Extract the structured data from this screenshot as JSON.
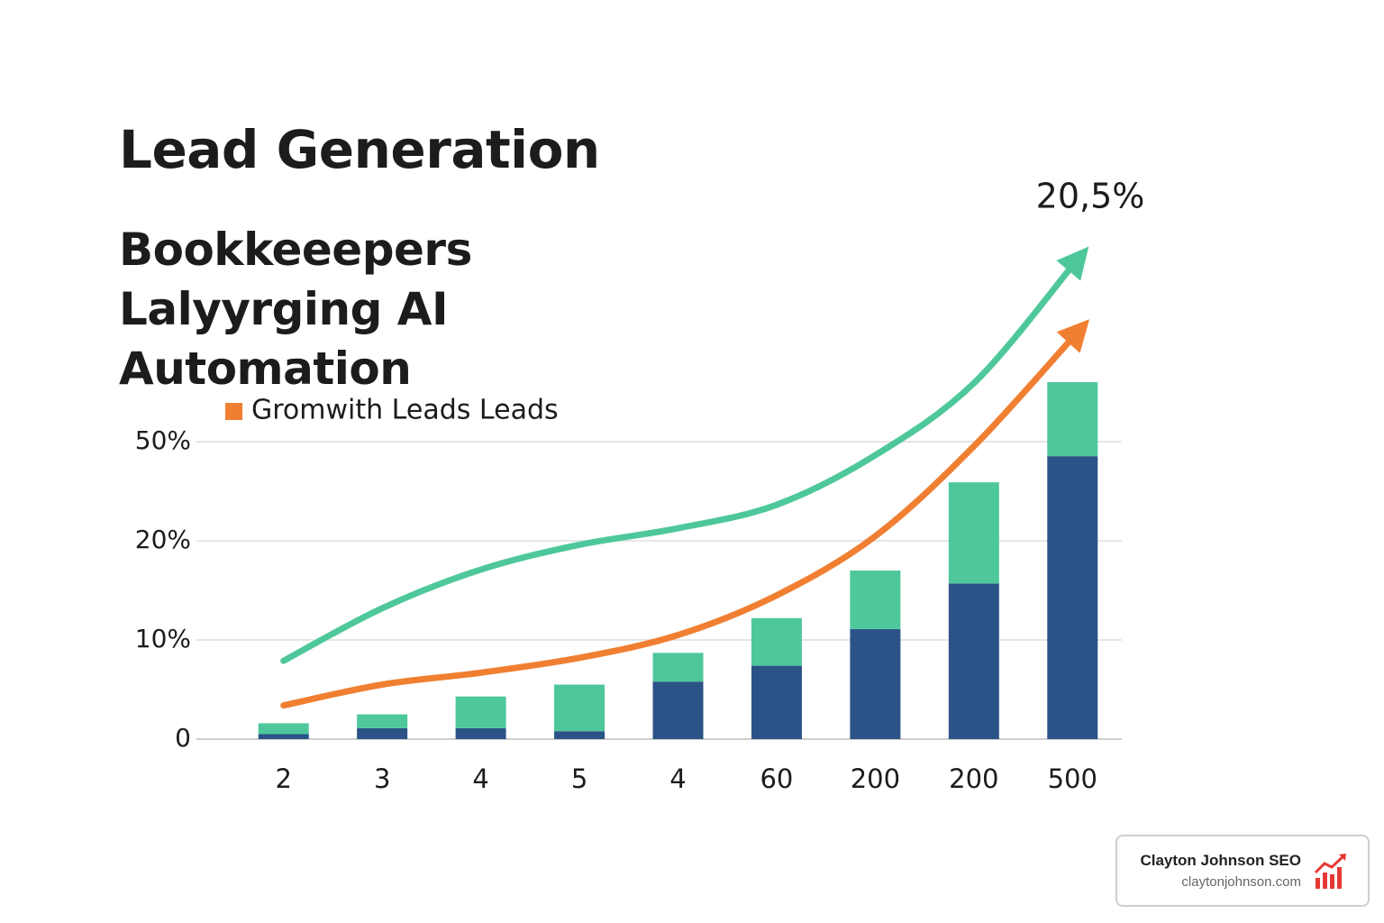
{
  "chart_data": {
    "type": "bar",
    "stacked": true,
    "title": "Lead Generation",
    "subtitle": "Bookkeeepers Lalyyrging AI Automation",
    "annotation": "20,5%",
    "categories": [
      "2",
      "3",
      "4",
      "5",
      "4",
      "60",
      "200",
      "200",
      "500"
    ],
    "series": [
      {
        "color": "#2b5388",
        "values": [
          0.5,
          1.1,
          1.1,
          0.8,
          5.8,
          7.4,
          11.1,
          15.7,
          45.6
        ]
      },
      {
        "color": "#4ec89a",
        "values": [
          1.1,
          1.4,
          3.2,
          4.7,
          2.9,
          4.8,
          5.9,
          22.0,
          22.4
        ]
      },
      {
        "type": "line",
        "color": "#4ec89a",
        "values": [
          7.9,
          13.2,
          17.1,
          19.6,
          23.8,
          30.9,
          45.9,
          67.7,
          103.2
        ]
      },
      {
        "type": "line",
        "name": "Gromwith Leads Leads",
        "color": "#f07f32",
        "values": [
          3.4,
          5.5,
          6.7,
          8.2,
          10.5,
          14.5,
          21.4,
          48.6,
          81.4
        ]
      }
    ],
    "ylim": [
      0,
      115
    ],
    "yticks": [
      0,
      {
        "value": 10,
        "label": "10%"
      },
      {
        "value": 20,
        "label": "20%"
      },
      {
        "value": 50,
        "label": "50%"
      }
    ],
    "grid": true
  },
  "badge": {
    "title": "Clayton Johnson SEO",
    "url": "claytonjohnson.com"
  }
}
